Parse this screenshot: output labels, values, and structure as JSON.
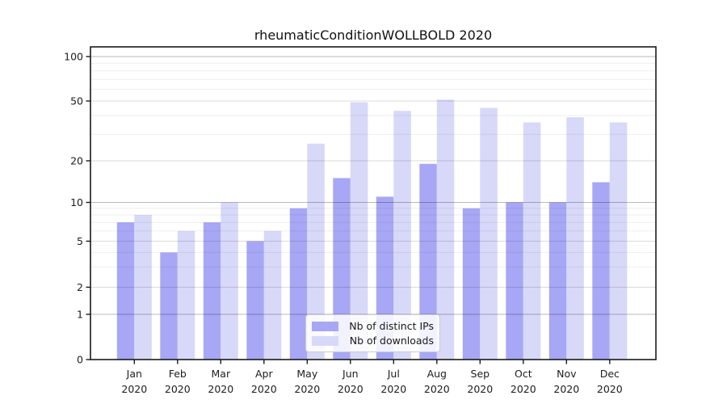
{
  "chart_data": {
    "type": "bar",
    "title": "rheumaticConditionWOLLBOLD 2020",
    "categories": [
      "Jan",
      "Feb",
      "Mar",
      "Apr",
      "May",
      "Jun",
      "Jul",
      "Aug",
      "Sep",
      "Oct",
      "Nov",
      "Dec"
    ],
    "x_year_label": "2020",
    "series": [
      {
        "name": "Nb of distinct IPs",
        "color": "#a7a7f5",
        "values": [
          7,
          4,
          7,
          5,
          9,
          15,
          11,
          19,
          9,
          10,
          10,
          14
        ]
      },
      {
        "name": "Nb of downloads",
        "color": "#d8d8f9",
        "values": [
          8,
          6,
          10,
          6,
          26,
          49,
          43,
          51,
          45,
          36,
          39,
          36
        ]
      }
    ],
    "yscale": "symlog",
    "ylim": [
      0,
      117
    ],
    "yticks": [
      0,
      1,
      2,
      5,
      10,
      20,
      50,
      100
    ],
    "yticks_minor": [
      3,
      4,
      6,
      7,
      8,
      9,
      30,
      40,
      60,
      70,
      80,
      90
    ],
    "grid": true,
    "legend_position": "inside-bottom-center",
    "colors": {
      "axis": "#1a1a1a",
      "tick_label": "#1c1c1c",
      "grid_minor": "rgba(0,0,0,0.065)",
      "grid_major": "rgba(0,0,0,0.14)",
      "grid_decade": "rgba(0,0,0,0.27)"
    }
  }
}
